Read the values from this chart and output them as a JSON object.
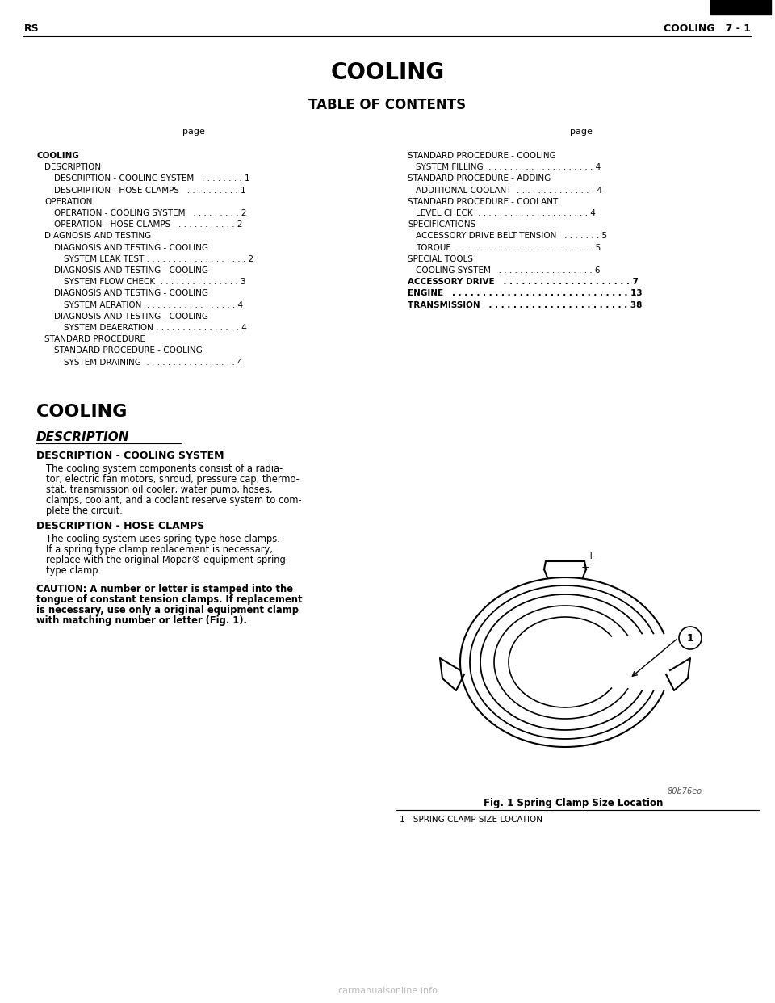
{
  "header_left": "RS",
  "header_right": "COOLING   7 - 1",
  "main_title": "COOLING",
  "toc_title": "TABLE OF CONTENTS",
  "page_label": "page",
  "bg_color": "#ffffff",
  "text_color": "#000000",
  "toc_left": [
    {
      "text": "COOLING",
      "bold": true,
      "indent": 0
    },
    {
      "text": "DESCRIPTION",
      "bold": false,
      "indent": 1
    },
    {
      "text": "DESCRIPTION - COOLING SYSTEM   . . . . . . . . 1",
      "bold": false,
      "indent": 2
    },
    {
      "text": "DESCRIPTION - HOSE CLAMPS   . . . . . . . . . . 1",
      "bold": false,
      "indent": 2
    },
    {
      "text": "OPERATION",
      "bold": false,
      "indent": 1
    },
    {
      "text": "OPERATION - COOLING SYSTEM   . . . . . . . . . 2",
      "bold": false,
      "indent": 2
    },
    {
      "text": "OPERATION - HOSE CLAMPS   . . . . . . . . . . . 2",
      "bold": false,
      "indent": 2
    },
    {
      "text": "DIAGNOSIS AND TESTING",
      "bold": false,
      "indent": 1
    },
    {
      "text": "DIAGNOSIS AND TESTING - COOLING",
      "bold": false,
      "indent": 2
    },
    {
      "text": "SYSTEM LEAK TEST . . . . . . . . . . . . . . . . . . . 2",
      "bold": false,
      "indent": 3
    },
    {
      "text": "DIAGNOSIS AND TESTING - COOLING",
      "bold": false,
      "indent": 2
    },
    {
      "text": "SYSTEM FLOW CHECK  . . . . . . . . . . . . . . . 3",
      "bold": false,
      "indent": 3
    },
    {
      "text": "DIAGNOSIS AND TESTING - COOLING",
      "bold": false,
      "indent": 2
    },
    {
      "text": "SYSTEM AERATION  . . . . . . . . . . . . . . . . . 4",
      "bold": false,
      "indent": 3
    },
    {
      "text": "DIAGNOSIS AND TESTING - COOLING",
      "bold": false,
      "indent": 2
    },
    {
      "text": "SYSTEM DEAERATION . . . . . . . . . . . . . . . . 4",
      "bold": false,
      "indent": 3
    },
    {
      "text": "STANDARD PROCEDURE",
      "bold": false,
      "indent": 1
    },
    {
      "text": "STANDARD PROCEDURE - COOLING",
      "bold": false,
      "indent": 2
    },
    {
      "text": "SYSTEM DRAINING  . . . . . . . . . . . . . . . . . 4",
      "bold": false,
      "indent": 3
    }
  ],
  "toc_right": [
    {
      "text": "STANDARD PROCEDURE - COOLING",
      "bold": false,
      "indent": 0
    },
    {
      "text": "SYSTEM FILLING  . . . . . . . . . . . . . . . . . . . . 4",
      "bold": false,
      "indent": 1
    },
    {
      "text": "STANDARD PROCEDURE - ADDING",
      "bold": false,
      "indent": 0
    },
    {
      "text": "ADDITIONAL COOLANT  . . . . . . . . . . . . . . . 4",
      "bold": false,
      "indent": 1
    },
    {
      "text": "STANDARD PROCEDURE - COOLANT",
      "bold": false,
      "indent": 0
    },
    {
      "text": "LEVEL CHECK  . . . . . . . . . . . . . . . . . . . . . 4",
      "bold": false,
      "indent": 1
    },
    {
      "text": "SPECIFICATIONS",
      "bold": false,
      "indent": 0
    },
    {
      "text": "ACCESSORY DRIVE BELT TENSION   . . . . . . . 5",
      "bold": false,
      "indent": 1
    },
    {
      "text": "TORQUE  . . . . . . . . . . . . . . . . . . . . . . . . . . 5",
      "bold": false,
      "indent": 1
    },
    {
      "text": "SPECIAL TOOLS",
      "bold": false,
      "indent": 0
    },
    {
      "text": "COOLING SYSTEM   . . . . . . . . . . . . . . . . . . 6",
      "bold": false,
      "indent": 1
    },
    {
      "text": "ACCESSORY DRIVE   . . . . . . . . . . . . . . . . . . . . . 7",
      "bold": true,
      "indent": 0
    },
    {
      "text": "ENGINE   . . . . . . . . . . . . . . . . . . . . . . . . . . . . . 13",
      "bold": true,
      "indent": 0
    },
    {
      "text": "TRANSMISSION   . . . . . . . . . . . . . . . . . . . . . . . 38",
      "bold": true,
      "indent": 0
    }
  ],
  "section_title": "COOLING",
  "desc_title": "DESCRIPTION",
  "desc_sub1_title": "DESCRIPTION - COOLING SYSTEM",
  "desc_sub1_text": "The cooling system components consist of a radia-\ntor, electric fan motors, shroud, pressure cap, thermo-\nstat, transmission oil cooler, water pump, hoses,\nclamps, coolant, and a coolant reserve system to com-\nplete the circuit.",
  "desc_sub2_title": "DESCRIPTION - HOSE CLAMPS",
  "desc_sub2_text": "The cooling system uses spring type hose clamps.\nIf a spring type clamp replacement is necessary,\nreplace with the original Mopar® equipment spring\ntype clamp.",
  "caution_text": "CAUTION: A number or letter is stamped into the\ntongue of constant tension clamps. If replacement\nis necessary, use only a original equipment clamp\nwith matching number or letter (Fig. 1).",
  "fig_caption": "Fig. 1 Spring Clamp Size Location",
  "fig_label": "1 - SPRING CLAMP SIZE LOCATION",
  "fig_code": "80b76eo",
  "watermark": "carmanualsonline.info"
}
